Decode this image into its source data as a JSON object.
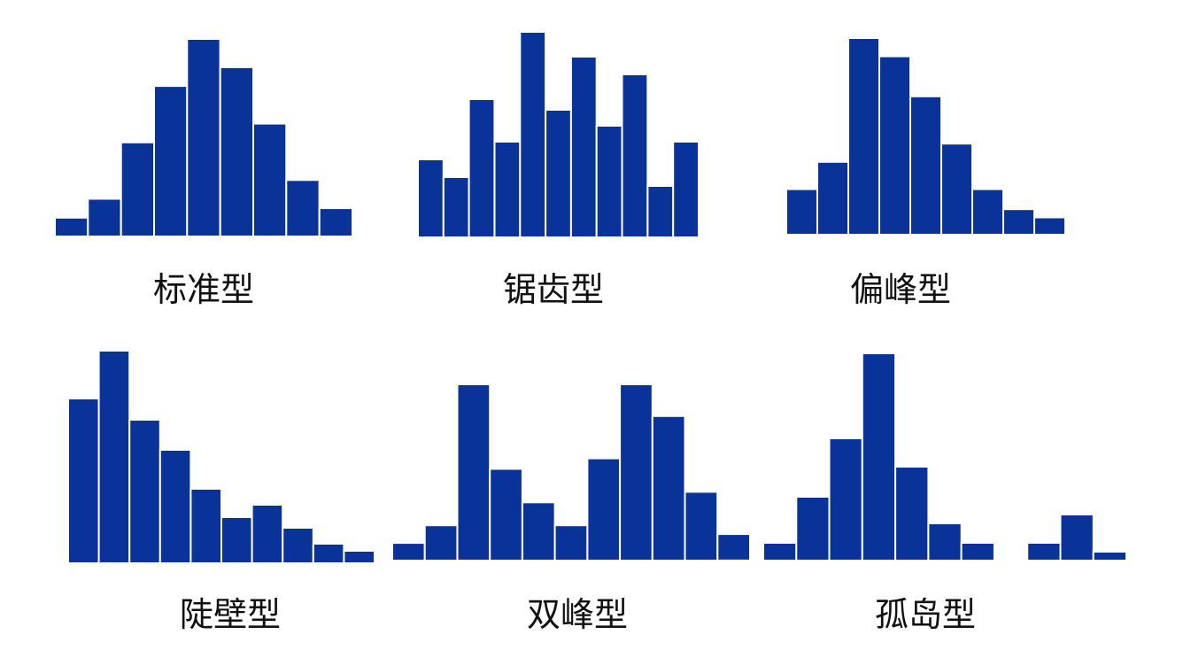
{
  "bar_color": "#0a3399",
  "chart_data": [
    {
      "type": "bar",
      "title": "标准型",
      "values": [
        1.0,
        2.0,
        5.0,
        8.0,
        10.5,
        9.0,
        6.0,
        3.0,
        1.5
      ]
    },
    {
      "type": "bar",
      "title": "锯齿型",
      "values": [
        4.4,
        3.4,
        7.8,
        5.4,
        11.6,
        7.2,
        10.2,
        6.3,
        9.2,
        2.9,
        5.4
      ]
    },
    {
      "type": "bar",
      "title": "偏峰型",
      "values": [
        2.5,
        4.0,
        10.8,
        9.8,
        7.6,
        5.0,
        2.5,
        1.4,
        0.95
      ]
    },
    {
      "type": "bar",
      "title": "陡壁型",
      "values": [
        9.3,
        12.0,
        8.1,
        6.4,
        4.2,
        2.6,
        3.3,
        2.0,
        1.1,
        0.7
      ]
    },
    {
      "type": "bar",
      "title": "双峰型",
      "values": [
        1.0,
        2.0,
        10.0,
        5.2,
        3.3,
        2.0,
        5.8,
        10.0,
        8.2,
        3.9,
        1.5
      ]
    },
    {
      "type": "bar",
      "title": "孤岛型",
      "values": [
        1.0,
        3.6,
        6.9,
        11.7,
        5.3,
        2.1,
        1.0,
        null,
        1.0,
        2.6,
        0.5
      ]
    }
  ]
}
